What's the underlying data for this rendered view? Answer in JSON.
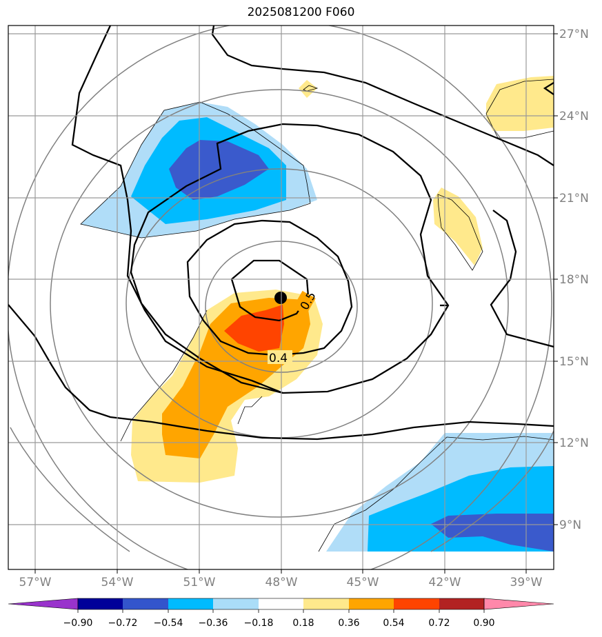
{
  "title": "2025081200 F060",
  "map": {
    "lon_labels": [
      "57°W",
      "54°W",
      "51°W",
      "48°W",
      "45°W",
      "42°W",
      "39°W"
    ],
    "lat_labels": [
      "27°N",
      "24°N",
      "21°N",
      "18°N",
      "15°N",
      "12°N",
      "9°N"
    ],
    "gridline_color": "#999999",
    "storm_center": {
      "lon": -48.0,
      "lat": 17.3
    }
  },
  "contour_labels": {
    "inner": "0.5",
    "outer": "0.4"
  },
  "colorbar": {
    "tick_labels": [
      "−0.90",
      "−0.72",
      "−0.54",
      "−0.36",
      "−0.18",
      "0.18",
      "0.36",
      "0.54",
      "0.72",
      "0.90"
    ],
    "colors": [
      "#9933cc",
      "#000099",
      "#3355cc",
      "#00bbff",
      "#aaddf8",
      "#ffffff",
      "#ffe98c",
      "#ffa500",
      "#ff4400",
      "#b22222",
      "#ff88aa"
    ]
  },
  "fill_colors": {
    "light_blue": "#b0ddf8",
    "blue": "#00bbff",
    "dark_blue": "#3a5acc",
    "yellow": "#ffe98c",
    "orange": "#ffa500",
    "red_orange": "#ff4400"
  }
}
